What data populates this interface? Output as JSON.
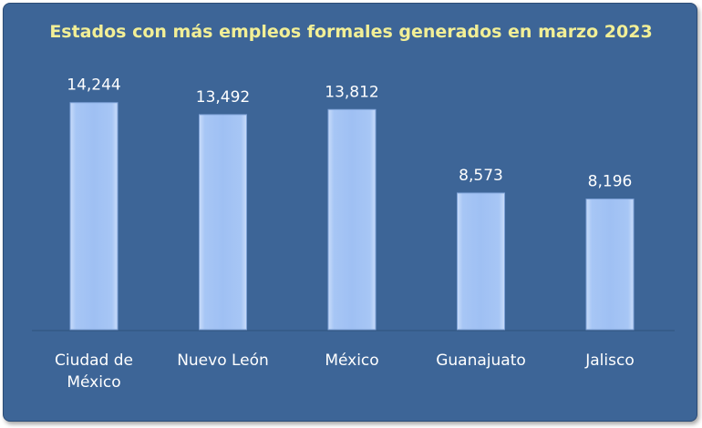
{
  "chart_data": {
    "type": "bar",
    "title": "Estados con más empleos formales generados en marzo 2023",
    "categories": [
      [
        "Ciudad de",
        "México"
      ],
      [
        "Nuevo León"
      ],
      [
        "México"
      ],
      [
        "Guanajuato"
      ],
      [
        "Jalisco"
      ]
    ],
    "values": [
      14244,
      13492,
      13812,
      8573,
      8196
    ],
    "value_labels": [
      "14,244",
      "13,492",
      "13,812",
      "8,573",
      "8,196"
    ],
    "ylim": [
      0,
      16000
    ],
    "grid": false,
    "legend": "none",
    "colors": {
      "background": "#3d6597",
      "bar": "#9fc0f3",
      "title": "#f2ef96",
      "text": "#ffffff"
    }
  }
}
